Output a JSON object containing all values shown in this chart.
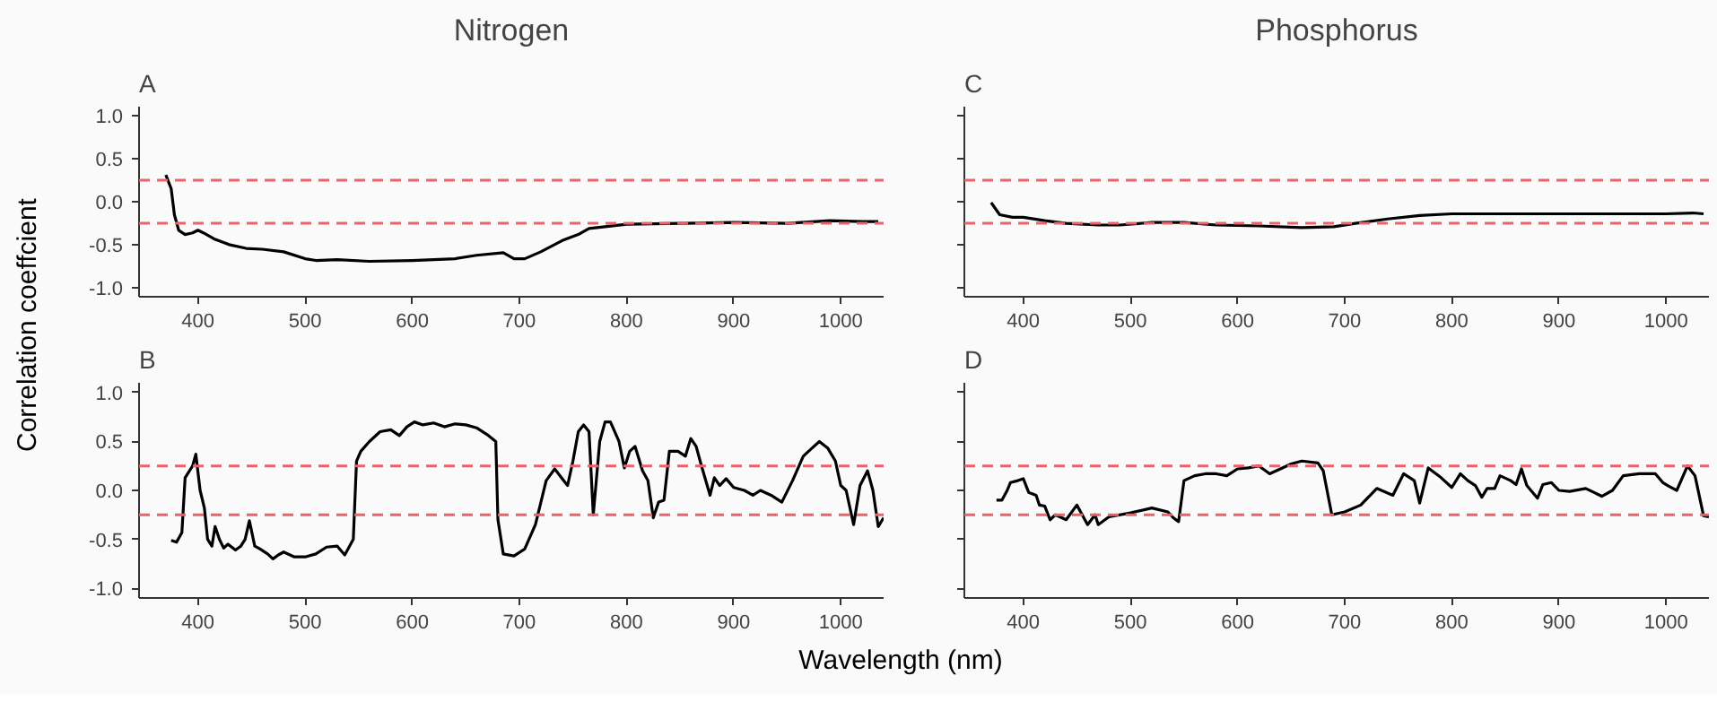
{
  "chart_data": [
    {
      "type": "line",
      "title": "Nitrogen",
      "subtitle": "A",
      "ylabel": "Correlation coeffcient",
      "xlim": [
        345,
        1040
      ],
      "xticks": [
        400,
        500,
        600,
        700,
        800,
        900,
        1000
      ],
      "ylim": [
        -1.1,
        1.1
      ],
      "yticks": [
        {
          "value": 1.0,
          "label": "1.0"
        },
        {
          "value": 0.5,
          "label": "0.5"
        },
        {
          "value": 0,
          "label": "0.0"
        },
        {
          "value": -0.5,
          "label": "-0.5"
        },
        {
          "value": -1.0,
          "label": "-1.0"
        }
      ],
      "grid": false,
      "line_style": "solid",
      "ref_lines": [
        {
          "axis": "y",
          "value": 0.25,
          "color": "#e8636f",
          "line_style": "dashed"
        },
        {
          "axis": "y",
          "value": -0.25,
          "color": "#e8636f",
          "line_style": "dashed"
        }
      ],
      "series": [
        {
          "color": "#000000",
          "x": [
            370,
            375,
            378,
            382,
            388,
            395,
            400,
            405,
            415,
            430,
            445,
            460,
            480,
            500,
            510,
            530,
            560,
            600,
            640,
            660,
            685,
            695,
            705,
            720,
            740,
            755,
            765,
            780,
            800,
            850,
            900,
            950,
            990,
            1020,
            1035
          ],
          "values": [
            0.31,
            0.15,
            -0.15,
            -0.33,
            -0.38,
            -0.36,
            -0.33,
            -0.36,
            -0.43,
            -0.5,
            -0.54,
            -0.55,
            -0.58,
            -0.66,
            -0.68,
            -0.67,
            -0.69,
            -0.68,
            -0.66,
            -0.62,
            -0.59,
            -0.66,
            -0.66,
            -0.58,
            -0.45,
            -0.38,
            -0.31,
            -0.29,
            -0.26,
            -0.25,
            -0.24,
            -0.25,
            -0.22,
            -0.23,
            -0.23
          ]
        }
      ]
    },
    {
      "type": "line",
      "subtitle": "B",
      "xlabel": "Wavelength (nm)",
      "xlim": [
        345,
        1040
      ],
      "xticks": [
        400,
        500,
        600,
        700,
        800,
        900,
        1000
      ],
      "ylim": [
        -1.1,
        1.1
      ],
      "yticks": [
        {
          "value": 1.0,
          "label": "1.0"
        },
        {
          "value": 0.5,
          "label": "0.5"
        },
        {
          "value": 0,
          "label": "0.0"
        },
        {
          "value": -0.5,
          "label": "-0.5"
        },
        {
          "value": -1.0,
          "label": "-1.0"
        }
      ],
      "grid": false,
      "line_style": "solid",
      "ref_lines": [
        {
          "axis": "y",
          "value": 0.25,
          "color": "#e8636f",
          "line_style": "dashed"
        },
        {
          "axis": "y",
          "value": -0.25,
          "color": "#e8636f",
          "line_style": "dashed"
        }
      ],
      "series": [
        {
          "color": "#000000",
          "x": [
            375,
            380,
            385,
            388,
            395,
            398,
            402,
            406,
            409,
            413,
            416,
            420,
            424,
            428,
            435,
            440,
            444,
            448,
            453,
            458,
            465,
            470,
            475,
            480,
            490,
            500,
            510,
            520,
            530,
            537,
            540,
            545,
            548,
            552,
            560,
            570,
            580,
            588,
            595,
            602,
            610,
            620,
            630,
            640,
            650,
            660,
            670,
            678,
            680,
            685,
            695,
            705,
            715,
            725,
            733,
            740,
            745,
            750,
            755,
            760,
            765,
            769,
            775,
            780,
            785,
            793,
            798,
            803,
            808,
            815,
            820,
            825,
            830,
            835,
            840,
            848,
            855,
            860,
            865,
            870,
            878,
            882,
            887,
            893,
            900,
            910,
            918,
            925,
            935,
            945,
            955,
            965,
            972,
            980,
            988,
            995,
            1000,
            1005,
            1012,
            1018,
            1025,
            1030,
            1035,
            1040
          ],
          "values": [
            -0.51,
            -0.53,
            -0.43,
            0.13,
            0.25,
            0.37,
            0.0,
            -0.18,
            -0.5,
            -0.57,
            -0.37,
            -0.5,
            -0.59,
            -0.55,
            -0.61,
            -0.57,
            -0.5,
            -0.31,
            -0.57,
            -0.6,
            -0.65,
            -0.7,
            -0.66,
            -0.63,
            -0.68,
            -0.68,
            -0.65,
            -0.58,
            -0.57,
            -0.66,
            -0.6,
            -0.5,
            0.3,
            0.4,
            0.5,
            0.6,
            0.62,
            0.56,
            0.65,
            0.7,
            0.67,
            0.69,
            0.65,
            0.68,
            0.67,
            0.64,
            0.57,
            0.5,
            -0.3,
            -0.65,
            -0.67,
            -0.6,
            -0.35,
            0.1,
            0.22,
            0.12,
            0.05,
            0.3,
            0.6,
            0.67,
            0.6,
            -0.25,
            0.5,
            0.7,
            0.7,
            0.5,
            0.23,
            0.4,
            0.45,
            0.2,
            0.1,
            -0.28,
            -0.12,
            -0.1,
            0.4,
            0.4,
            0.35,
            0.53,
            0.45,
            0.25,
            -0.05,
            0.13,
            0.05,
            0.12,
            0.03,
            0.0,
            -0.05,
            0.0,
            -0.05,
            -0.12,
            0.1,
            0.35,
            0.42,
            0.5,
            0.43,
            0.3,
            0.05,
            0.0,
            -0.35,
            0.05,
            0.2,
            0.0,
            -0.37,
            -0.28
          ]
        }
      ]
    },
    {
      "type": "line",
      "title": "Phosphorus",
      "subtitle": "C",
      "tick_labels": "x",
      "xlim": [
        345,
        1040
      ],
      "xticks": [
        400,
        500,
        600,
        700,
        800,
        900,
        1000
      ],
      "ylim": [
        -1.1,
        1.1
      ],
      "yticks": [
        {
          "value": 1.0,
          "label": null
        },
        {
          "value": 0.5,
          "label": null
        },
        {
          "value": 0,
          "label": null
        },
        {
          "value": -0.5,
          "label": null
        },
        {
          "value": -1.0,
          "label": null
        }
      ],
      "grid": false,
      "line_style": "solid",
      "ref_lines": [
        {
          "axis": "y",
          "value": 0.25,
          "color": "#e8636f",
          "line_style": "dashed"
        },
        {
          "axis": "y",
          "value": -0.25,
          "color": "#e8636f",
          "line_style": "dashed"
        }
      ],
      "series": [
        {
          "color": "#000000",
          "x": [
            370,
            378,
            390,
            400,
            420,
            440,
            470,
            490,
            520,
            550,
            580,
            620,
            660,
            690,
            710,
            740,
            770,
            800,
            850,
            900,
            950,
            1000,
            1025,
            1035
          ],
          "values": [
            -0.01,
            -0.15,
            -0.18,
            -0.18,
            -0.22,
            -0.25,
            -0.27,
            -0.27,
            -0.24,
            -0.24,
            -0.27,
            -0.28,
            -0.3,
            -0.29,
            -0.25,
            -0.2,
            -0.16,
            -0.14,
            -0.14,
            -0.14,
            -0.14,
            -0.14,
            -0.13,
            -0.14
          ]
        }
      ]
    },
    {
      "type": "line",
      "subtitle": "D",
      "tick_labels": "x",
      "xlim": [
        345,
        1040
      ],
      "xticks": [
        400,
        500,
        600,
        700,
        800,
        900,
        1000
      ],
      "ylim": [
        -1.1,
        1.1
      ],
      "yticks": [
        {
          "value": 1.0,
          "label": null
        },
        {
          "value": 0.5,
          "label": null
        },
        {
          "value": 0,
          "label": null
        },
        {
          "value": -0.5,
          "label": null
        },
        {
          "value": -1.0,
          "label": null
        }
      ],
      "grid": false,
      "line_style": "solid",
      "ref_lines": [
        {
          "axis": "y",
          "value": 0.25,
          "color": "#e8636f",
          "line_style": "dashed"
        },
        {
          "axis": "y",
          "value": -0.25,
          "color": "#e8636f",
          "line_style": "dashed"
        }
      ],
      "series": [
        {
          "color": "#000000",
          "x": [
            375,
            380,
            385,
            388,
            395,
            400,
            405,
            412,
            415,
            420,
            425,
            430,
            440,
            450,
            455,
            460,
            467,
            470,
            480,
            500,
            520,
            535,
            540,
            545,
            550,
            560,
            570,
            580,
            590,
            600,
            610,
            620,
            630,
            650,
            660,
            675,
            680,
            688,
            700,
            715,
            730,
            745,
            755,
            765,
            770,
            778,
            790,
            800,
            808,
            815,
            822,
            828,
            833,
            840,
            845,
            855,
            860,
            865,
            870,
            880,
            885,
            893,
            900,
            910,
            925,
            940,
            950,
            960,
            975,
            990,
            997,
            1003,
            1010,
            1020,
            1027,
            1035,
            1040
          ],
          "values": [
            -0.1,
            -0.1,
            0.0,
            0.08,
            0.1,
            0.12,
            -0.02,
            -0.05,
            -0.15,
            -0.16,
            -0.3,
            -0.25,
            -0.3,
            -0.15,
            -0.25,
            -0.35,
            -0.25,
            -0.35,
            -0.27,
            -0.23,
            -0.18,
            -0.22,
            -0.28,
            -0.32,
            0.1,
            0.15,
            0.17,
            0.17,
            0.15,
            0.22,
            0.23,
            0.25,
            0.17,
            0.27,
            0.3,
            0.28,
            0.2,
            -0.25,
            -0.22,
            -0.15,
            0.02,
            -0.05,
            0.17,
            0.1,
            -0.13,
            0.23,
            0.13,
            0.03,
            0.17,
            0.1,
            0.05,
            -0.07,
            0.02,
            0.02,
            0.15,
            0.1,
            0.06,
            0.22,
            0.05,
            -0.08,
            0.06,
            0.08,
            0.0,
            -0.01,
            0.02,
            -0.06,
            0.0,
            0.15,
            0.17,
            0.17,
            0.08,
            0.04,
            0.0,
            0.25,
            0.15,
            -0.26,
            -0.27
          ]
        }
      ]
    }
  ]
}
